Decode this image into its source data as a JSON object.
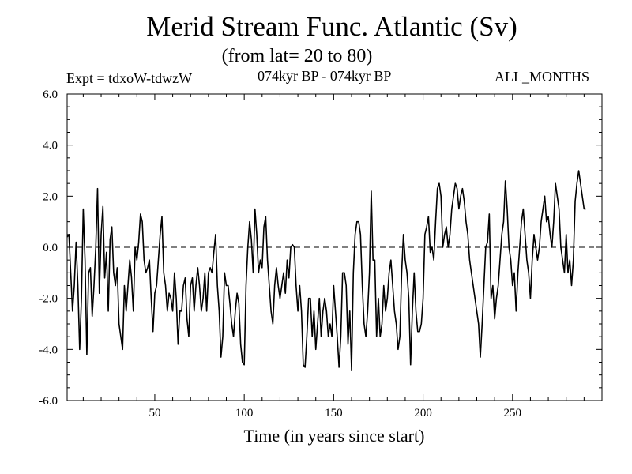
{
  "header": {
    "title": "Merid Stream Func. Atlantic (Sv)",
    "subtitle": "(from lat= 20 to 80)",
    "experiment": "Expt = tdxoW-tdwzW",
    "period": "074kyr BP - 074kyr BP",
    "months": "ALL_MONTHS"
  },
  "chart_data": {
    "type": "line",
    "title": "Merid Stream Func. Atlantic (Sv)",
    "xlabel": "Time (in years since start)",
    "ylabel": "",
    "xlim": [
      1,
      300
    ],
    "ylim": [
      -6,
      6
    ],
    "x_ticks": [
      50,
      100,
      150,
      200,
      250
    ],
    "x_tick_labels": [
      "50",
      "100",
      "150",
      "200",
      "250"
    ],
    "y_ticks": [
      -6,
      -4,
      -2,
      0,
      2,
      4,
      6
    ],
    "y_tick_labels": [
      "-6.0",
      "-4.0",
      "-2.0",
      "0.0",
      "2.0",
      "4.0",
      "6.0"
    ],
    "zero_line": "dashed",
    "grid": false,
    "series": [
      {
        "x_start": 1,
        "x_step": 1,
        "values": [
          0.4,
          0.5,
          -1.0,
          -2.5,
          -1.5,
          0.2,
          -1.5,
          -4.0,
          -2.0,
          1.5,
          -0.5,
          -4.2,
          -1.0,
          -0.8,
          -2.7,
          -1.5,
          0.0,
          2.3,
          -1.8,
          0.5,
          1.6,
          -1.2,
          -0.2,
          -2.5,
          0.3,
          0.8,
          -1.0,
          -1.5,
          -0.8,
          -3.0,
          -3.5,
          -4.0,
          -1.5,
          -2.5,
          -1.5,
          -0.5,
          -1.2,
          -2.5,
          0.0,
          -0.5,
          0.2,
          1.3,
          1.0,
          -0.5,
          -1.0,
          -0.8,
          -0.5,
          -2.0,
          -3.3,
          -1.8,
          -1.5,
          -0.5,
          0.5,
          1.2,
          -1.0,
          -1.5,
          -2.5,
          -1.8,
          -2.0,
          -2.5,
          -1.0,
          -2.0,
          -3.8,
          -2.5,
          -2.5,
          -1.5,
          -1.2,
          -2.8,
          -3.5,
          -1.5,
          -1.2,
          -2.5,
          -1.5,
          -0.8,
          -1.5,
          -2.5,
          -2.0,
          -1.0,
          -2.5,
          -1.0,
          -0.8,
          -1.0,
          -0.2,
          0.5,
          -1.5,
          -2.5,
          -4.3,
          -3.5,
          -1.0,
          -1.5,
          -1.5,
          -2.2,
          -3.0,
          -3.5,
          -2.5,
          -1.8,
          -2.2,
          -3.8,
          -4.5,
          -4.6,
          -1.5,
          0.0,
          1.0,
          0.3,
          -1.0,
          1.5,
          0.5,
          -1.0,
          -0.5,
          -0.8,
          0.8,
          1.2,
          -0.5,
          -1.5,
          -2.5,
          -3.0,
          -1.5,
          -0.8,
          -1.5,
          -2.0,
          -1.5,
          -1.0,
          -1.8,
          -0.5,
          -1.2,
          0.0,
          0.1,
          0.0,
          -1.5,
          -2.5,
          -1.5,
          -2.5,
          -4.6,
          -4.7,
          -3.5,
          -2.0,
          -2.0,
          -3.5,
          -2.5,
          -4.0,
          -3.0,
          -2.0,
          -3.5,
          -2.5,
          -2.0,
          -2.5,
          -3.5,
          -3.0,
          -3.5,
          -1.5,
          -2.5,
          -3.5,
          -4.7,
          -3.5,
          -1.0,
          -1.0,
          -1.5,
          -3.8,
          -2.5,
          -4.8,
          -1.0,
          0.5,
          1.0,
          1.0,
          0.5,
          -1.5,
          -3.0,
          -3.5,
          -2.5,
          -1.0,
          2.2,
          -0.5,
          -0.5,
          -3.5,
          -2.0,
          -3.5,
          -3.0,
          -1.5,
          -2.5,
          -2.0,
          -1.0,
          -0.5,
          -1.5,
          -2.5,
          -3.0,
          -4.0,
          -3.5,
          -1.0,
          0.5,
          -0.5,
          -1.0,
          -2.0,
          -4.6,
          -2.5,
          -1.0,
          -2.5,
          -3.3,
          -3.3,
          -3.0,
          -2.0,
          0.5,
          0.8,
          1.2,
          -0.2,
          0.0,
          -0.5,
          1.0,
          2.3,
          2.5,
          2.0,
          0.0,
          0.5,
          0.8,
          0.0,
          0.5,
          1.5,
          2.0,
          2.5,
          2.3,
          1.5,
          2.0,
          2.3,
          1.8,
          1.0,
          0.5,
          -0.5,
          -1.0,
          -1.5,
          -2.0,
          -2.5,
          -3.0,
          -4.3,
          -3.0,
          -1.5,
          0.0,
          0.2,
          1.3,
          -2.0,
          -1.5,
          -2.8,
          -2.0,
          -1.5,
          -0.5,
          0.5,
          1.0,
          2.6,
          1.5,
          0.0,
          -0.5,
          -1.5,
          -1.0,
          -2.5,
          -1.0,
          0.0,
          1.0,
          1.5,
          0.5,
          -0.5,
          -1.0,
          -2.0,
          -0.5,
          0.5,
          0.0,
          -0.5,
          0.0,
          1.0,
          1.5,
          2.0,
          1.0,
          1.2,
          0.5,
          0.0,
          1.0,
          2.5,
          2.0,
          1.5,
          0.0,
          -0.5,
          -1.0,
          0.5,
          -1.0,
          -0.5,
          -1.5,
          -0.5,
          1.8,
          2.5,
          3.0,
          2.5,
          2.0,
          1.5,
          1.5
        ]
      }
    ]
  }
}
